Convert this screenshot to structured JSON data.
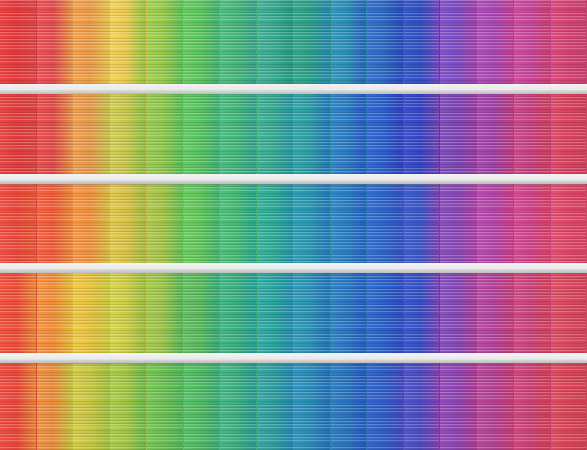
{
  "image": {
    "subject": "color-gradient-facade-panels",
    "palette": {
      "row1": [
        "#e23a3a",
        "#e24a4e",
        "#e89a4a",
        "#e8c850",
        "#98c848",
        "#5ec25c",
        "#48b478",
        "#3aa88e",
        "#2c9e86",
        "#2c8eb4",
        "#2d69c2",
        "#2f4fbe",
        "#7a4cc0",
        "#a548b0",
        "#c54698",
        "#d14474"
      ],
      "row2": [
        "#e03d3d",
        "#de4a48",
        "#e7974a",
        "#c8c44e",
        "#90c44c",
        "#58c25c",
        "#44b47a",
        "#38a890",
        "#2c9ca4",
        "#2b7cc0",
        "#2b60c8",
        "#3446c2",
        "#7a46b4",
        "#9e42a6",
        "#c24282",
        "#d64462"
      ],
      "row3": [
        "#e8483c",
        "#ec5c3a",
        "#ee8e3e",
        "#d8c046",
        "#a4c046",
        "#62c458",
        "#46b872",
        "#2eaa92",
        "#2a96ae",
        "#2a7ec0",
        "#2c66c6",
        "#3a56c4",
        "#8448b4",
        "#b246a8",
        "#cc448a",
        "#dc4868"
      ],
      "row4": [
        "#ea4c38",
        "#ee8c3a",
        "#e6c03e",
        "#cccc44",
        "#9ac248",
        "#5ab85a",
        "#3aae7e",
        "#2aa49c",
        "#2a92b2",
        "#2a78c0",
        "#2a62c6",
        "#3450c4",
        "#8248b6",
        "#b0449c",
        "#c8447c",
        "#d8485e"
      ],
      "row5": [
        "#e6463a",
        "#e88a3c",
        "#c8c440",
        "#a2c444",
        "#6cbe50",
        "#52b860",
        "#3eae7e",
        "#2e9e9a",
        "#2a8cb4",
        "#2a74bc",
        "#2c5ec4",
        "#4a4cc0",
        "#8c44b2",
        "#b04294",
        "#c84278",
        "#d64658"
      ]
    },
    "panel_stripe": "#ffffff",
    "divider_color": "#f2f2f2"
  }
}
